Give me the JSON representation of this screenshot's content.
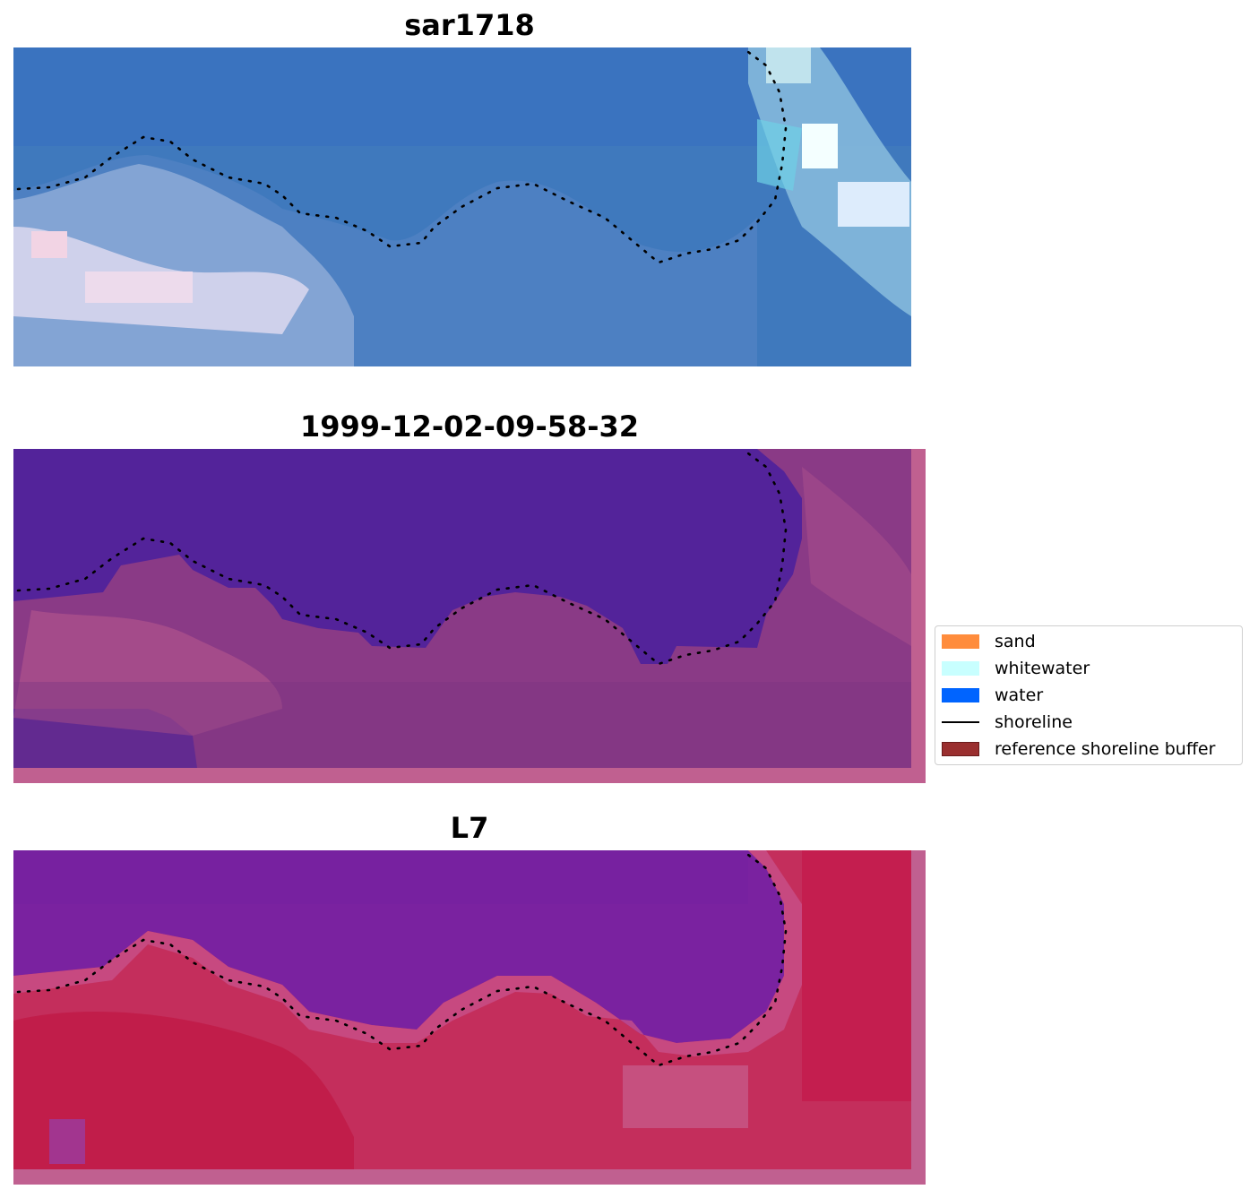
{
  "panels": [
    {
      "title": "sar1718"
    },
    {
      "title": "1999-12-02-09-58-32"
    },
    {
      "title": "L7"
    }
  ],
  "legend": {
    "items": [
      {
        "label": "sand",
        "color": "#ff8c3c",
        "kind": "patch"
      },
      {
        "label": "whitewater",
        "color": "#c8ffff",
        "kind": "patch"
      },
      {
        "label": "water",
        "color": "#0064ff",
        "kind": "patch"
      },
      {
        "label": "shoreline",
        "color": "#000000",
        "kind": "line"
      },
      {
        "label": "reference shoreline buffer",
        "color": "#9a2f2f",
        "kind": "patch"
      }
    ]
  },
  "colors": {
    "rgb_water": "#3f79bd",
    "rgb_cloud": "#dcdcec",
    "classified_water": "#53239a",
    "classified_land": "#8a3a86",
    "buffer_border": "#c06090",
    "index_water": "#7a22a0",
    "index_land": "#c01a48"
  }
}
